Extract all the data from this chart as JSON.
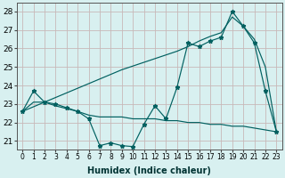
{
  "xlabel": "Humidex (Indice chaleur)",
  "background_color": "#d8f0f0",
  "grid_color": "#c8b8b8",
  "line_color": "#006060",
  "xlim": [
    -0.5,
    23.5
  ],
  "ylim": [
    20.55,
    28.45
  ],
  "yticks": [
    21,
    22,
    23,
    24,
    25,
    26,
    27,
    28
  ],
  "xticks": [
    0,
    1,
    2,
    3,
    4,
    5,
    6,
    7,
    8,
    9,
    10,
    11,
    12,
    13,
    14,
    15,
    16,
    17,
    18,
    19,
    20,
    21,
    22,
    23
  ],
  "line_zigzag_x": [
    0,
    1,
    2,
    3,
    4,
    5,
    6,
    7,
    8,
    9,
    10,
    11,
    12,
    13,
    14,
    15,
    16,
    17,
    18,
    19,
    20,
    21,
    22,
    23
  ],
  "line_zigzag_y": [
    22.6,
    23.7,
    23.1,
    23.0,
    22.8,
    22.6,
    22.2,
    20.75,
    20.9,
    20.75,
    20.7,
    21.9,
    22.9,
    22.2,
    23.9,
    26.3,
    26.1,
    26.4,
    26.6,
    28.0,
    27.2,
    26.3,
    23.7,
    21.5
  ],
  "line_flat_x": [
    0,
    1,
    2,
    3,
    4,
    5,
    6,
    7,
    8,
    9,
    10,
    11,
    12,
    13,
    14,
    15,
    16,
    17,
    18,
    19,
    20,
    21,
    22,
    23
  ],
  "line_flat_y": [
    22.6,
    23.1,
    23.1,
    22.9,
    22.75,
    22.6,
    22.4,
    22.3,
    22.3,
    22.3,
    22.2,
    22.2,
    22.2,
    22.1,
    22.1,
    22.0,
    22.0,
    21.9,
    21.9,
    21.8,
    21.8,
    21.7,
    21.6,
    21.5
  ],
  "line_diag_x": [
    0,
    1,
    2,
    3,
    4,
    5,
    6,
    7,
    8,
    9,
    10,
    11,
    12,
    13,
    14,
    15,
    16,
    17,
    18,
    19,
    20,
    21,
    22,
    23
  ],
  "line_diag_y": [
    22.6,
    22.85,
    23.1,
    23.35,
    23.6,
    23.85,
    24.1,
    24.35,
    24.6,
    24.85,
    25.05,
    25.25,
    25.45,
    25.65,
    25.85,
    26.1,
    26.4,
    26.65,
    26.85,
    27.7,
    27.2,
    26.5,
    25.0,
    21.5
  ],
  "marker_size": 3.5,
  "font_size": 7
}
